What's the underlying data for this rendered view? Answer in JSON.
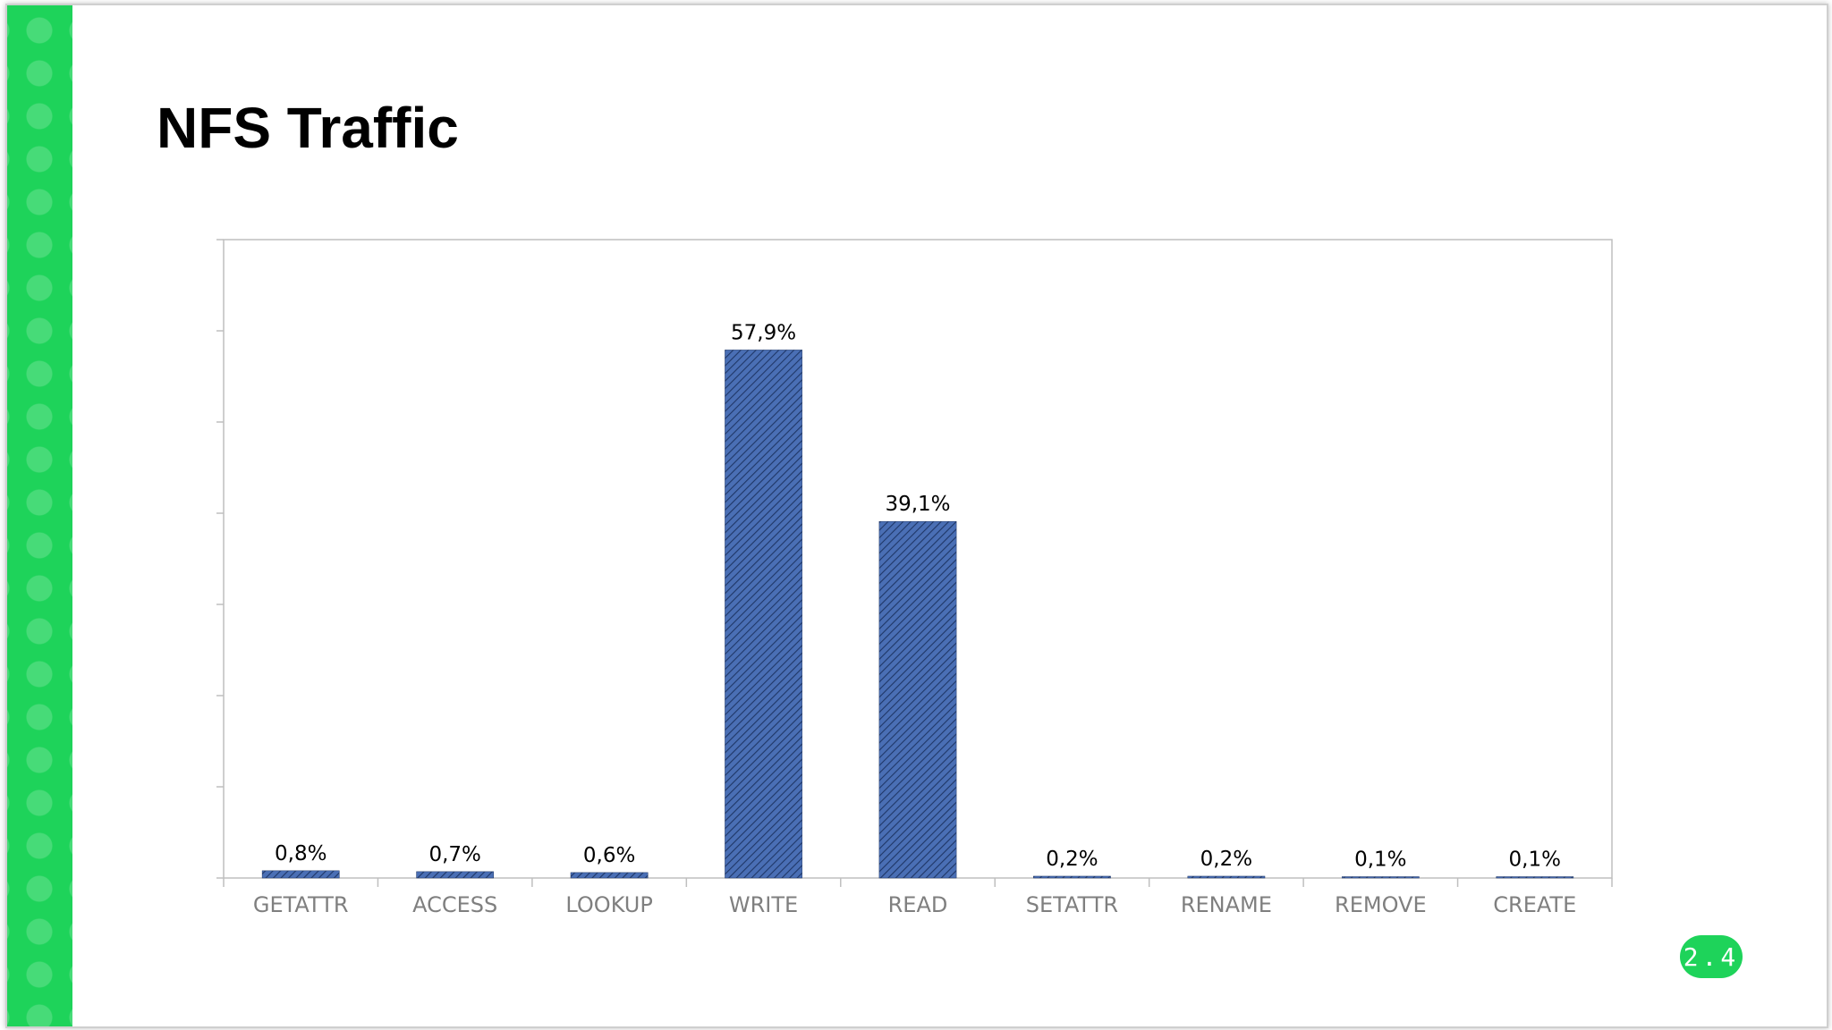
{
  "slide": {
    "title": "NFS Traffic",
    "page_number": "2.4"
  },
  "colors": {
    "accent_green": "#1ed35a",
    "bar_fill": "#4a6fb5",
    "bar_hatch": "#1f3767",
    "axis": "#bfbfbf",
    "tick_label": "#7f7f7f",
    "data_label": "#000000"
  },
  "chart_data": {
    "type": "bar",
    "title": "",
    "xlabel": "",
    "ylabel": "",
    "categories": [
      "GETATTR",
      "ACCESS",
      "LOOKUP",
      "WRITE",
      "READ",
      "SETATTR",
      "RENAME",
      "REMOVE",
      "CREATE"
    ],
    "values": [
      0.8,
      0.7,
      0.6,
      57.9,
      39.1,
      0.2,
      0.2,
      0.1,
      0.1
    ],
    "data_labels": [
      "0,8%",
      "0,7%",
      "0,6%",
      "57,9%",
      "39,1%",
      "0,2%",
      "0,2%",
      "0,1%",
      "0,1%"
    ],
    "ylim": [
      0,
      70
    ],
    "y_tick_step": 10,
    "y_tick_labels_shown": false,
    "grid": false,
    "legend": "none",
    "bar_pattern": "diagonal-hatch"
  }
}
